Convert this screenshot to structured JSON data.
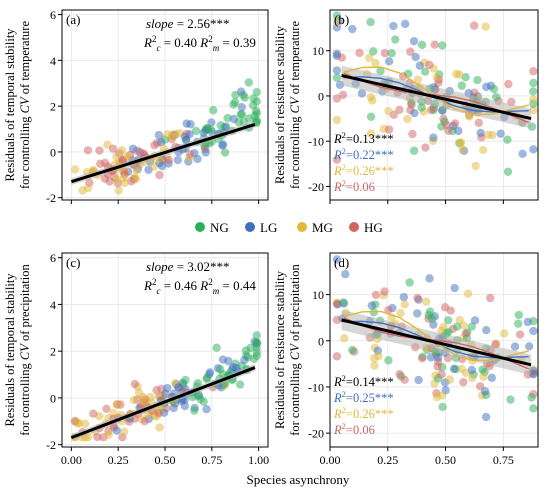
{
  "figure": {
    "x_label": "Species asynchrony"
  },
  "legend": {
    "items": [
      {
        "label": "NG",
        "color": "#2bb05a"
      },
      {
        "label": "LG",
        "color": "#3f6fbf"
      },
      {
        "label": "MG",
        "color": "#e0b83a"
      },
      {
        "label": "HG",
        "color": "#d26464"
      }
    ]
  },
  "chart_data": [
    {
      "panel": "(a)",
      "type": "scatter",
      "ylabel_line1": "Residuals of temporal stability",
      "ylabel_line2_pre": "for controlling ",
      "ylabel_line2_em": "CV",
      "ylabel_line2_post": " of temperature",
      "xlim": [
        -0.05,
        1.05
      ],
      "ylim": [
        -2.1,
        6.2
      ],
      "yticks": [
        -2,
        0,
        2,
        4,
        6
      ],
      "xticks": [],
      "grid": true,
      "stats": {
        "slope_label": "slope",
        "slope_value": " = 2.56***",
        "r2c": " = 0.40",
        "r2m": " = 0.39"
      },
      "regression": {
        "x0": 0.0,
        "y0": -1.3,
        "x1": 0.98,
        "y1": 1.2
      },
      "stat_colors": {
        "black": "#000000"
      }
    },
    {
      "panel": "(b)",
      "type": "scatter",
      "ylabel_line1": "Residuals of resistance stability",
      "ylabel_line2_pre": "for controlling ",
      "ylabel_line2_em": "CV",
      "ylabel_line2_post": " of temperature",
      "xlim": [
        0.0,
        0.9
      ],
      "ylim": [
        -23,
        19
      ],
      "yticks": [
        -20,
        -10,
        0,
        10
      ],
      "xticks": [],
      "grid": true,
      "r2": [
        {
          "text": "=0.13***",
          "color": "#000000"
        },
        {
          "text": "=0.22***",
          "color": "#3f6fbf"
        },
        {
          "text": "=0.26***",
          "color": "#e0b83a"
        },
        {
          "text": "=0.06",
          "color": "#d26464"
        }
      ],
      "regression": {
        "x0": 0.05,
        "y0": 4.5,
        "x1": 0.87,
        "y1": -5.0
      }
    },
    {
      "panel": "(c)",
      "type": "scatter",
      "ylabel_line1": "Residuals of temporal stability",
      "ylabel_line2_pre": "for controlling ",
      "ylabel_line2_em": "CV",
      "ylabel_line2_post": " of precipitation",
      "xlim": [
        -0.05,
        1.05
      ],
      "ylim": [
        -2.1,
        6.2
      ],
      "yticks": [
        -2,
        0,
        2,
        4,
        6
      ],
      "xticks": [
        "0.00",
        "0.25",
        "0.50",
        "0.75",
        "1.00"
      ],
      "xtick_values": [
        0,
        0.25,
        0.5,
        0.75,
        1.0
      ],
      "grid": true,
      "stats": {
        "slope_label": "slope",
        "slope_value": " = 3.02***",
        "r2c": " = 0.46",
        "r2m": " = 0.44"
      },
      "regression": {
        "x0": 0.0,
        "y0": -1.7,
        "x1": 0.98,
        "y1": 1.3
      }
    },
    {
      "panel": "(d)",
      "type": "scatter",
      "ylabel_line1": "Residuals of resistance stability",
      "ylabel_line2_pre": "for controlling ",
      "ylabel_line2_em": "CV",
      "ylabel_line2_post": " of precipitation",
      "xlim": [
        0.0,
        0.9
      ],
      "ylim": [
        -23,
        19
      ],
      "yticks": [
        -20,
        -10,
        0,
        10
      ],
      "xticks": [
        "0.00",
        "0.25",
        "0.50",
        "0.75"
      ],
      "xtick_values": [
        0,
        0.25,
        0.5,
        0.75
      ],
      "grid": true,
      "r2": [
        {
          "text": "=0.14***",
          "color": "#000000"
        },
        {
          "text": "=0.25***",
          "color": "#3f6fbf"
        },
        {
          "text": "=0.26***",
          "color": "#e0b83a"
        },
        {
          "text": "=0.06",
          "color": "#d26464"
        }
      ],
      "regression": {
        "x0": 0.05,
        "y0": 4.5,
        "x1": 0.87,
        "y1": -5.2
      }
    }
  ]
}
